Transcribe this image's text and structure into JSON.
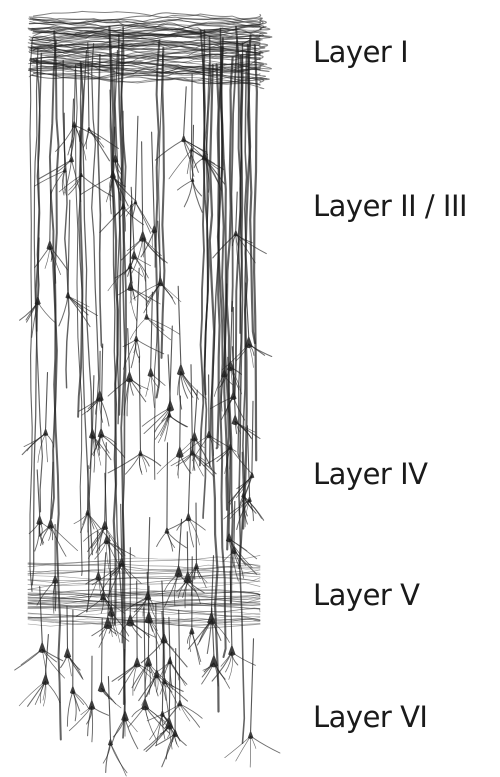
{
  "labels": [
    "Layer I",
    "Layer II / III",
    "Layer IV",
    "Layer V",
    "Layer VI"
  ],
  "colors": {
    "ink": "#1f1f1f",
    "paper": "#ffffff"
  }
}
